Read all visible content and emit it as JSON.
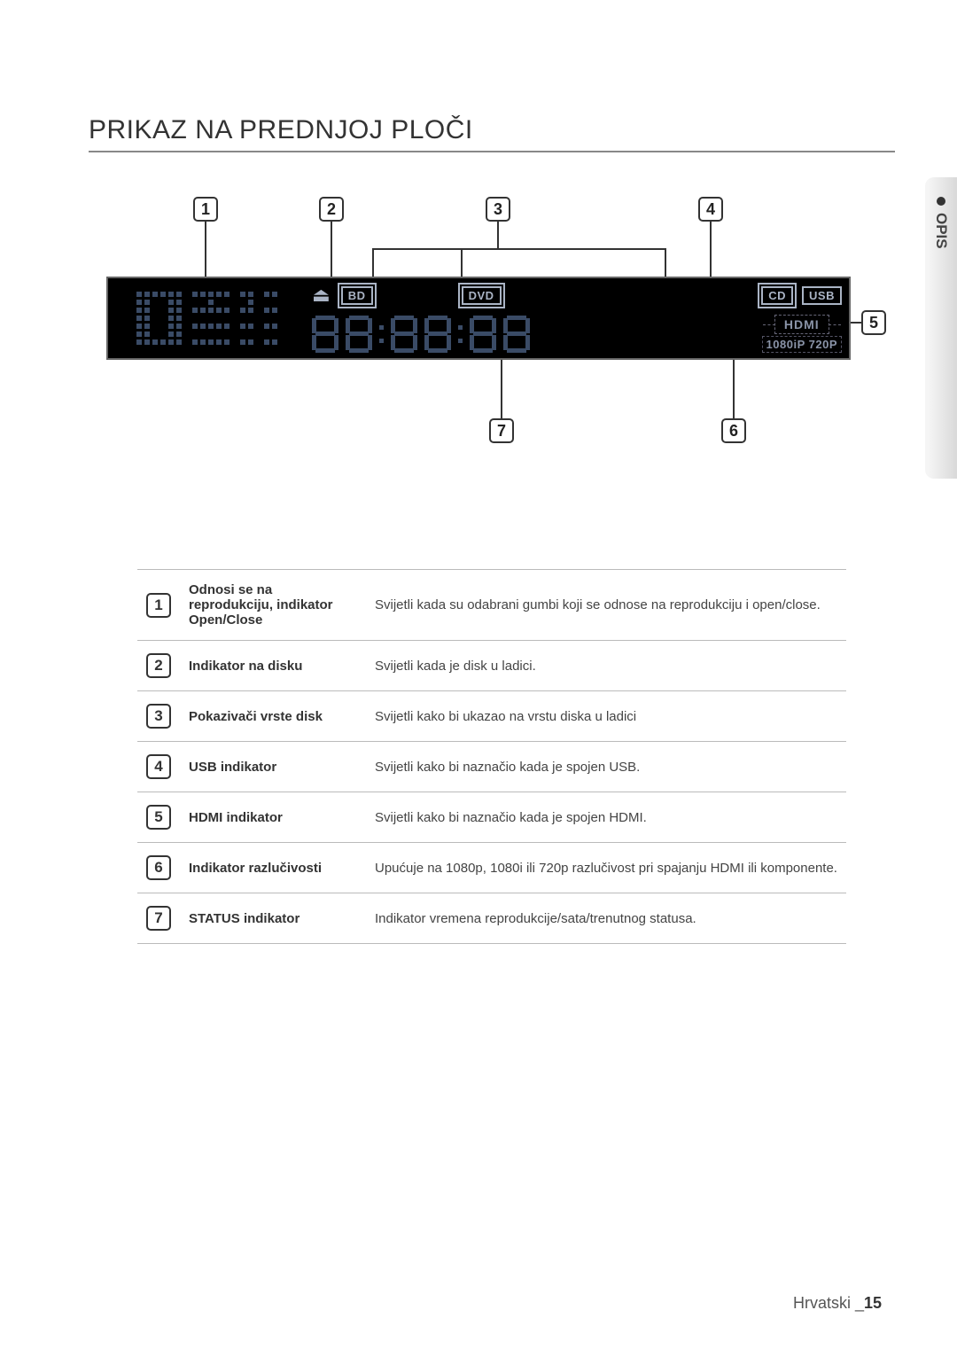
{
  "title": "PRIKAZ NA PREDNJOJ PLOČI",
  "side_tab": {
    "label": "OPIS"
  },
  "display": {
    "badges": {
      "bd": "BD",
      "dvd": "DVD",
      "cd": "CD",
      "usb": "USB"
    },
    "hdmi_label": "HDMI",
    "res_label": "1080iP 720P"
  },
  "callouts": {
    "c1": "1",
    "c2": "2",
    "c3": "3",
    "c4": "4",
    "c5": "5",
    "c6": "6",
    "c7": "7"
  },
  "rows": [
    {
      "n": "1",
      "name": "Odnosi se na reprodukciju, indikator Open/Close",
      "desc": "Svijetli kada su odabrani gumbi koji se odnose na reprodukciju i open/close."
    },
    {
      "n": "2",
      "name": "Indikator na disku",
      "desc": "Svijetli kada je disk u ladici."
    },
    {
      "n": "3",
      "name": "Pokazivači vrste disk",
      "desc": "Svijetli kako bi ukazao na vrstu diska u ladici"
    },
    {
      "n": "4",
      "name": "USB indikator",
      "desc": "Svijetli kako bi naznačio kada je spojen USB."
    },
    {
      "n": "5",
      "name": "HDMI indikator",
      "desc": "Svijetli kako bi naznačio kada je spojen HDMI."
    },
    {
      "n": "6",
      "name": "Indikator razlučivosti",
      "desc": "Upućuje na 1080p, 1080i ili 720p razlučivost pri spajanju HDMI ili komponente."
    },
    {
      "n": "7",
      "name": "STATUS indikator",
      "desc": "Indikator vremena reprodukcije/sata/trenutnog statusa."
    }
  ],
  "footer": {
    "lang": "Hrvatski _",
    "page": "15"
  },
  "colors": {
    "seg": "#3a4b66",
    "panel_bg": "#000000",
    "badge_border": "#aab4c5"
  }
}
